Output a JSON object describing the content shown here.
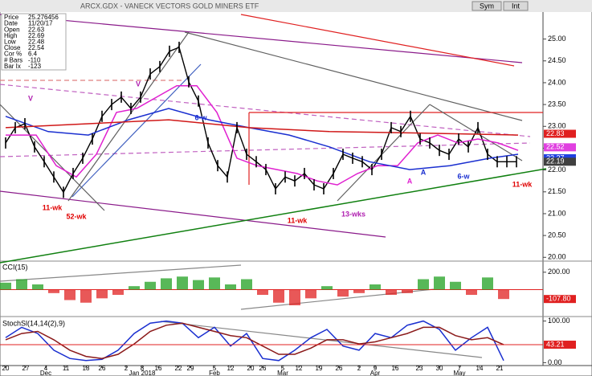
{
  "header": {
    "title": "ARCX.GDX - VANECK VECTORS GOLD MINERS ETF",
    "toolbar": [
      "Sym",
      "Int"
    ]
  },
  "chart_data": [
    {
      "type": "line",
      "info": [
        {
          "label": "Price",
          "value": "25.276456"
        },
        {
          "label": "Date",
          "value": "11/20/17"
        },
        {
          "label": "Open",
          "value": "22.63"
        },
        {
          "label": "High",
          "value": "22.69"
        },
        {
          "label": "Low",
          "value": "22.48"
        },
        {
          "label": "Close",
          "value": "22.54"
        },
        {
          "label": "Cor %",
          "value": "6.4"
        },
        {
          "label": "# Bars",
          "value": "-110"
        },
        {
          "label": "Bar Ix",
          "value": "-123"
        }
      ],
      "ylim": [
        19.95,
        25.6
      ],
      "yticks": [
        {
          "value": 20,
          "label": "20.00"
        },
        {
          "value": 20.5,
          "label": "20.50"
        },
        {
          "value": 21,
          "label": "21.00"
        },
        {
          "value": 21.5,
          "label": "21.50"
        },
        {
          "value": 22,
          "label": "22.00"
        },
        {
          "value": 22.5,
          "label": "22.50"
        },
        {
          "value": 23,
          "label": "23.00"
        },
        {
          "value": 23.5,
          "label": "23.50"
        },
        {
          "value": 24,
          "label": "24.00"
        },
        {
          "value": 24.5,
          "label": "24.50"
        },
        {
          "value": 25,
          "label": "25.00"
        }
      ],
      "xlim": [
        0,
        133.8
      ],
      "series": [
        {
          "name": "Price",
          "color": "#000000",
          "x": [
            0,
            2.4,
            4.8,
            7.2,
            9.6,
            12,
            14.4,
            16.8,
            19.2,
            21.6,
            24,
            26.4,
            28.8,
            31.2,
            33.6,
            36,
            38.4,
            40.8,
            43.2,
            45.6,
            48,
            50.4,
            52.8,
            55.2,
            57.6,
            60,
            62.4,
            64.8,
            67.2,
            69.6,
            72,
            74.4,
            76.8,
            79.2,
            81.6,
            84,
            86.4,
            88.8,
            91.2,
            93.6,
            96,
            98.4,
            100.8,
            103.2,
            105.6,
            108,
            110.4,
            112.8,
            115.2,
            117.6,
            120,
            122.4,
            124.8,
            127.2
          ],
          "values": [
            22.62,
            22.97,
            23.06,
            22.53,
            22.19,
            21.84,
            21.49,
            21.92,
            22.27,
            22.71,
            23.23,
            23.5,
            23.67,
            23.41,
            23.67,
            24.2,
            24.37,
            24.72,
            24.81,
            24.02,
            23.58,
            22.62,
            22.1,
            21.84,
            22.97,
            22.36,
            22.19,
            22.01,
            21.57,
            21.84,
            21.75,
            21.92,
            21.66,
            21.57,
            21.92,
            22.36,
            22.27,
            22.19,
            22.01,
            22.36,
            22.97,
            22.88,
            23.23,
            22.71,
            22.62,
            22.45,
            22.36,
            22.71,
            22.53,
            22.97,
            22.36,
            22.19,
            22.19,
            22.19
          ]
        },
        {
          "name": "Short MA",
          "color": "#e020d0",
          "x": [
            0,
            7.6,
            12.6,
            17.6,
            22.6,
            27.6,
            32.6,
            37.6,
            42.6,
            47.6,
            52.6,
            57.6,
            62.6,
            67.6,
            72.6,
            77.6,
            82.6,
            87.6,
            92.6,
            97.6,
            102.6,
            107.6,
            112.6,
            117.6,
            122.6,
            127.6
          ],
          "values": [
            22.8,
            22.8,
            22.1,
            21.84,
            22.36,
            23.32,
            23.41,
            23.67,
            23.93,
            23.93,
            23.32,
            22.27,
            22.1,
            22.01,
            21.92,
            21.75,
            21.66,
            21.92,
            22.1,
            22.1,
            22.62,
            22.8,
            22.62,
            22.71,
            22.62,
            22.45
          ]
        },
        {
          "name": "Mid MA",
          "color": "#1a2fd0",
          "x": [
            0,
            10.6,
            20.6,
            30.6,
            40.6,
            50.6,
            60.6,
            70.6,
            80.6,
            90.6,
            100.6,
            110.6,
            120.6,
            127.6
          ],
          "values": [
            23.23,
            22.88,
            22.8,
            23.15,
            23.41,
            23.15,
            22.97,
            22.8,
            22.53,
            22.19,
            22.01,
            22.1,
            22.27,
            22.36
          ]
        },
        {
          "name": "Long MA",
          "color": "#d01818",
          "x": [
            0,
            20.6,
            40.6,
            60.6,
            80.6,
            100.6,
            127.6
          ],
          "values": [
            22.97,
            23.06,
            23.15,
            22.97,
            22.88,
            22.85,
            22.8
          ]
        }
      ],
      "flags": [
        {
          "value": 22.83,
          "color": "#e02020"
        },
        {
          "value": 22.52,
          "color": "#e040e0"
        },
        {
          "value": 22.27,
          "color": "#2040e0"
        },
        {
          "value": 22.19,
          "color": "#404040"
        }
      ],
      "annotations": [
        {
          "text": "V",
          "color": "#b020b0"
        },
        {
          "text": "V",
          "color": "#b020b0"
        },
        {
          "text": "11-wk",
          "color": "#e00000"
        },
        {
          "text": "52-wk",
          "color": "#e00000"
        },
        {
          "text": "6-w",
          "color": "#1a2fd0"
        },
        {
          "text": "11-wk",
          "color": "#e00000"
        },
        {
          "text": "13-wks",
          "color": "#b020b0"
        },
        {
          "text": "A",
          "color": "#e020d0"
        },
        {
          "text": "A",
          "color": "#1a2fd0"
        },
        {
          "text": "6-w",
          "color": "#1a2fd0"
        },
        {
          "text": "11-wk",
          "color": "#e00000"
        }
      ]
    },
    {
      "type": "bar",
      "title": "CCI(15)",
      "ylim": [
        -300,
        300
      ],
      "yticks": [
        {
          "value": 200,
          "label": "200.00"
        }
      ],
      "x": [
        0,
        4,
        8,
        12,
        16,
        20,
        24,
        28,
        32,
        36,
        40,
        44,
        48,
        52,
        56,
        60,
        64,
        68,
        72,
        76,
        80,
        84,
        88,
        92,
        96,
        100,
        104,
        108,
        112,
        116,
        120,
        124
      ],
      "values": [
        80,
        120,
        60,
        -40,
        -120,
        -150,
        -100,
        -60,
        40,
        90,
        130,
        150,
        110,
        140,
        60,
        120,
        -60,
        -150,
        -180,
        -100,
        40,
        -80,
        -40,
        60,
        -60,
        -40,
        120,
        150,
        90,
        -60,
        140,
        -107.8
      ],
      "up_color": "#20a020",
      "down_color": "#e02020",
      "flags": [
        {
          "value": -107.8,
          "label": "-107.80",
          "color": "#e02020"
        }
      ]
    },
    {
      "type": "line",
      "title": "StochSl(14,14(2),9)",
      "ylim": [
        -5,
        105
      ],
      "yticks": [
        {
          "value": 0,
          "label": "0.00"
        },
        {
          "value": 100,
          "label": "100.00"
        }
      ],
      "xticks": [
        {
          "value": 0,
          "label": "20"
        },
        {
          "value": 5,
          "label": "27"
        },
        {
          "value": 10,
          "label": "4"
        },
        {
          "value": 15,
          "label": "11"
        },
        {
          "value": 20,
          "label": "18"
        },
        {
          "value": 24,
          "label": "26"
        },
        {
          "value": 30,
          "label": "2"
        },
        {
          "value": 34,
          "label": "8"
        },
        {
          "value": 38,
          "label": "16"
        },
        {
          "value": 43,
          "label": "22"
        },
        {
          "value": 46,
          "label": "29"
        },
        {
          "value": 52,
          "label": "5"
        },
        {
          "value": 56,
          "label": "12"
        },
        {
          "value": 61,
          "label": "20"
        },
        {
          "value": 64,
          "label": "26"
        },
        {
          "value": 69,
          "label": "5"
        },
        {
          "value": 73,
          "label": "12"
        },
        {
          "value": 78,
          "label": "19"
        },
        {
          "value": 83,
          "label": "26"
        },
        {
          "value": 88,
          "label": "2"
        },
        {
          "value": 92,
          "label": "9"
        },
        {
          "value": 97,
          "label": "16"
        },
        {
          "value": 103,
          "label": "23"
        },
        {
          "value": 108,
          "label": "30"
        },
        {
          "value": 113,
          "label": "7"
        },
        {
          "value": 118,
          "label": "14"
        },
        {
          "value": 123,
          "label": "21"
        }
      ],
      "months": [
        {
          "value": 10,
          "label": "Dec"
        },
        {
          "value": 34,
          "label": "Jan 2018"
        },
        {
          "value": 52,
          "label": "Feb"
        },
        {
          "value": 69,
          "label": "Mar"
        },
        {
          "value": 92,
          "label": "Apr"
        },
        {
          "value": 113,
          "label": "May"
        }
      ],
      "series": [
        {
          "name": "%K",
          "color": "#1a2fd0",
          "x": [
            0,
            4,
            8,
            12,
            16,
            20,
            24,
            28,
            32,
            36,
            40,
            44,
            48,
            52,
            56,
            60,
            64,
            68,
            72,
            76,
            80,
            84,
            88,
            92,
            96,
            100,
            104,
            108,
            112,
            116,
            120,
            124
          ],
          "values": [
            60,
            85,
            70,
            30,
            10,
            5,
            8,
            30,
            70,
            95,
            100,
            95,
            60,
            85,
            40,
            70,
            10,
            5,
            30,
            60,
            80,
            40,
            30,
            70,
            60,
            90,
            100,
            80,
            30,
            60,
            85,
            5
          ]
        },
        {
          "name": "%D",
          "color": "#8b1a1a",
          "x": [
            0,
            4,
            8,
            12,
            16,
            20,
            24,
            28,
            32,
            36,
            40,
            44,
            48,
            52,
            56,
            60,
            64,
            68,
            72,
            76,
            80,
            84,
            88,
            92,
            96,
            100,
            104,
            108,
            112,
            116,
            120,
            124
          ],
          "values": [
            55,
            70,
            75,
            55,
            30,
            15,
            10,
            20,
            45,
            75,
            90,
            95,
            85,
            75,
            65,
            60,
            40,
            20,
            20,
            35,
            55,
            55,
            45,
            50,
            60,
            70,
            85,
            85,
            65,
            55,
            60,
            43.21
          ]
        }
      ],
      "flags": [
        {
          "value": 43.21,
          "color": "#e02020"
        }
      ]
    }
  ]
}
